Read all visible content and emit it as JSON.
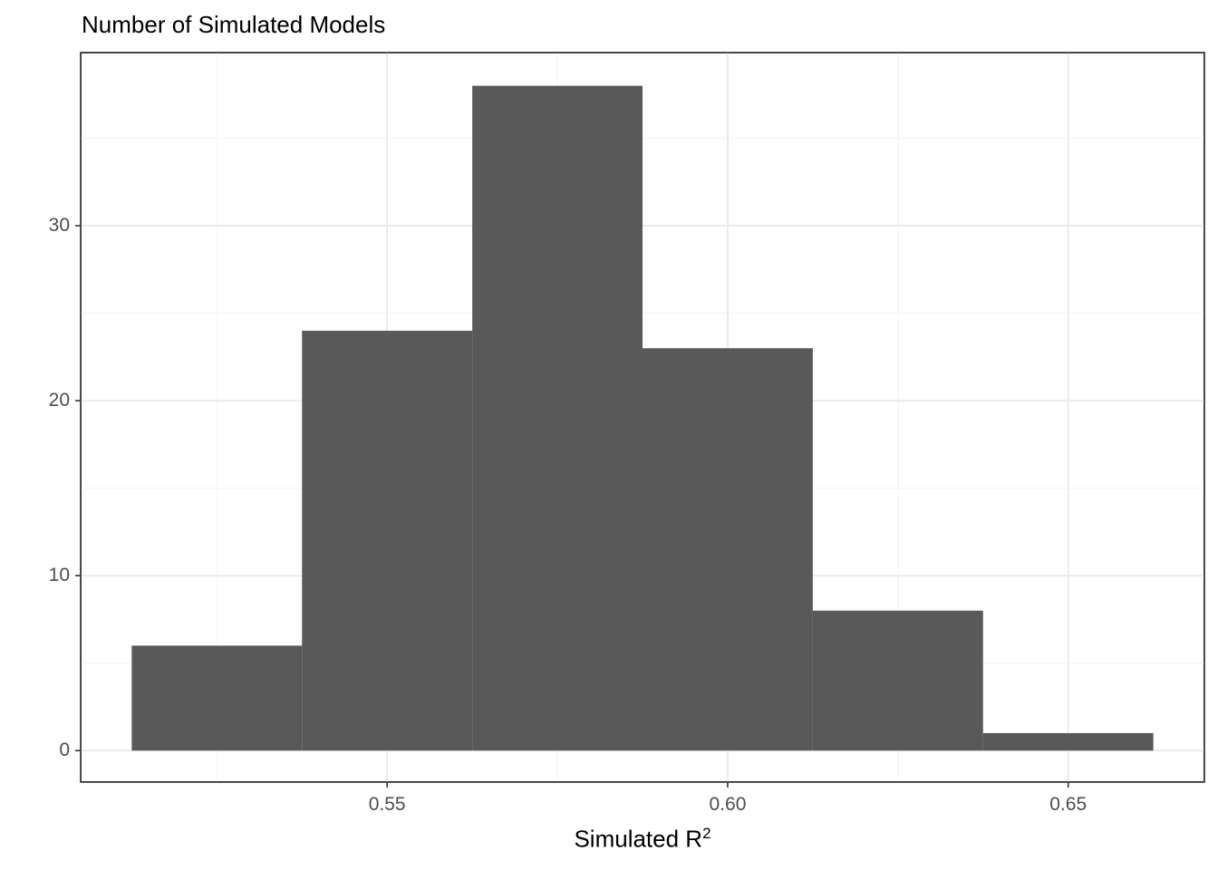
{
  "title": "Number of Simulated Models",
  "x_axis": {
    "label": "Simulated R",
    "label_superscript": "2",
    "ticks": [
      "0.55",
      "0.60",
      "0.65"
    ]
  },
  "y_axis": {
    "label": "",
    "ticks": [
      "0",
      "10",
      "20",
      "30"
    ]
  },
  "colors": {
    "bar_fill": "#595959",
    "grid_major": "#ebebeb",
    "grid_minor": "#f5f5f5",
    "panel_border": "#333333",
    "tick_text": "#4d4d4d"
  },
  "chart_data": {
    "type": "bar",
    "subtype": "histogram",
    "title": "Number of Simulated Models",
    "xlabel": "Simulated R^2",
    "ylabel": "",
    "bin_width": 0.025,
    "bins": [
      {
        "x_start": 0.5125,
        "x_end": 0.5375,
        "count": 6
      },
      {
        "x_start": 0.5375,
        "x_end": 0.5625,
        "count": 24
      },
      {
        "x_start": 0.5625,
        "x_end": 0.5875,
        "count": 38
      },
      {
        "x_start": 0.5875,
        "x_end": 0.6125,
        "count": 23
      },
      {
        "x_start": 0.6125,
        "x_end": 0.6375,
        "count": 8
      },
      {
        "x_start": 0.6375,
        "x_end": 0.6625,
        "count": 1
      }
    ],
    "categories": [
      "0.525",
      "0.550",
      "0.575",
      "0.600",
      "0.625",
      "0.650"
    ],
    "values": [
      6,
      24,
      38,
      23,
      8,
      1
    ],
    "xlim": [
      0.505,
      0.67
    ],
    "ylim": [
      -1.8,
      39.9
    ],
    "x_ticks": [
      0.55,
      0.6,
      0.65
    ],
    "y_ticks": [
      0,
      10,
      20,
      30
    ],
    "grid": true,
    "legend": null
  }
}
